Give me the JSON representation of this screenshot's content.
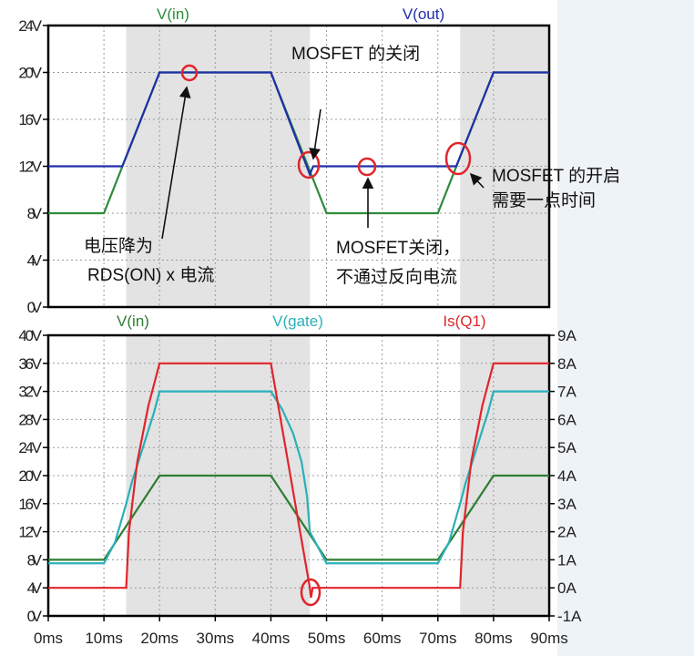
{
  "chart_data": [
    {
      "type": "line",
      "x_unit": "ms",
      "xlim": [
        0,
        90
      ],
      "ylim": [
        0,
        24
      ],
      "y_ticks": [
        "0V",
        "4V",
        "8V",
        "12V",
        "16V",
        "20V",
        "24V"
      ],
      "grid": true,
      "shaded_x_ranges": [
        [
          14,
          47
        ],
        [
          74,
          90
        ]
      ],
      "series": [
        {
          "name": "V(in)",
          "color": "#2e8b3a",
          "points": [
            [
              0,
              8
            ],
            [
              10,
              8
            ],
            [
              20,
              20
            ],
            [
              40,
              20
            ],
            [
              50,
              8
            ],
            [
              70,
              8
            ],
            [
              80,
              20
            ],
            [
              90,
              20
            ]
          ]
        },
        {
          "name": "V(out)",
          "color": "#1f2fa8",
          "points": [
            [
              0,
              12
            ],
            [
              13.3,
              12
            ],
            [
              20,
              20
            ],
            [
              40,
              20
            ],
            [
              47,
              11.3
            ],
            [
              47.6,
              12
            ],
            [
              73.3,
              12
            ],
            [
              80,
              20
            ],
            [
              90,
              20
            ]
          ]
        }
      ],
      "annotations": [
        {
          "text": "MOSFET 的关闭"
        },
        {
          "line1": "电压降为",
          "line2": "RDS(ON) x 电流"
        },
        {
          "line1": "MOSFET关闭，",
          "line2": "不通过反向电流"
        },
        {
          "line1": "MOSFET 的开启",
          "line2": "需要一点时间"
        }
      ]
    },
    {
      "type": "line",
      "x_unit": "ms",
      "xlim": [
        0,
        90
      ],
      "x_ticks": [
        "0ms",
        "10ms",
        "20ms",
        "30ms",
        "40ms",
        "50ms",
        "60ms",
        "70ms",
        "80ms",
        "90ms"
      ],
      "ylim": [
        0,
        40
      ],
      "y_ticks": [
        "0V",
        "4V",
        "8V",
        "12V",
        "16V",
        "20V",
        "24V",
        "28V",
        "32V",
        "36V",
        "40V"
      ],
      "y2lim": [
        -1,
        9
      ],
      "y2_ticks": [
        "-1A",
        "0A",
        "1A",
        "2A",
        "3A",
        "4A",
        "5A",
        "6A",
        "7A",
        "8A",
        "9A"
      ],
      "grid": true,
      "shaded_x_ranges": [
        [
          14,
          47
        ],
        [
          74,
          90
        ]
      ],
      "series": [
        {
          "name": "V(in)",
          "axis": "left",
          "color": "#2e7d32",
          "points": [
            [
              0,
              8
            ],
            [
              10,
              8
            ],
            [
              20,
              20
            ],
            [
              40,
              20
            ],
            [
              50,
              8
            ],
            [
              70,
              8
            ],
            [
              80,
              20
            ],
            [
              90,
              20
            ]
          ]
        },
        {
          "name": "V(gate)",
          "axis": "left",
          "color": "#2ab0b8",
          "points": [
            [
              0,
              7.5
            ],
            [
              10,
              7.5
            ],
            [
              12,
              10.5
            ],
            [
              14,
              16
            ],
            [
              15,
              19
            ],
            [
              17,
              24
            ],
            [
              19,
              29
            ],
            [
              20,
              32
            ],
            [
              40,
              32
            ],
            [
              42,
              29.5
            ],
            [
              44,
              26
            ],
            [
              45.5,
              22
            ],
            [
              46.5,
              17
            ],
            [
              47,
              12
            ],
            [
              50,
              7.5
            ],
            [
              70,
              7.5
            ],
            [
              72,
              10.5
            ],
            [
              74,
              16
            ],
            [
              75,
              19
            ],
            [
              77,
              24
            ],
            [
              79,
              29
            ],
            [
              80,
              32
            ],
            [
              90,
              32
            ]
          ]
        },
        {
          "name": "Is(Q1)",
          "axis": "right",
          "color": "#e0252b",
          "points": [
            [
              0,
              0
            ],
            [
              14,
              0
            ],
            [
              14.5,
              2
            ],
            [
              16,
              4.5
            ],
            [
              18,
              6.5
            ],
            [
              20,
              8
            ],
            [
              40,
              8
            ],
            [
              47,
              0
            ],
            [
              47.2,
              -0.35
            ],
            [
              47.5,
              0
            ],
            [
              74,
              0
            ],
            [
              74.5,
              2
            ],
            [
              76,
              4.5
            ],
            [
              78,
              6.5
            ],
            [
              80,
              8
            ],
            [
              90,
              8
            ]
          ]
        }
      ]
    }
  ]
}
